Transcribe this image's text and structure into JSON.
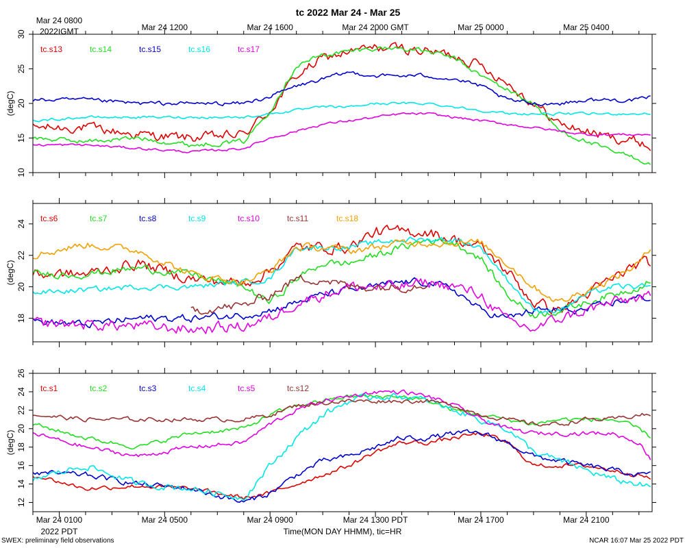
{
  "title": "tc 2022 Mar 24 - Mar 25",
  "footer_left": "SWEX: preliminary field observations",
  "footer_right": "NCAR 16:07 Mar 25 2022 PDT",
  "x_axis": {
    "label": "Time(MON DAY HHMM), tic=HR",
    "range_hours_pdt": [
      0,
      23.5
    ],
    "top_ticks_gmt": [
      "Mar 24 0800",
      "Mar 24 1200",
      "Mar 24 1600",
      "Mar 24 2000 GMT",
      "Mar 25 0000",
      "Mar 25 0400"
    ],
    "top_tick_hours_pdt": [
      1,
      5,
      9,
      13,
      17,
      21
    ],
    "top_first_sub": "2022 GMT",
    "bottom_ticks_pdt": [
      "Mar 24 0100",
      "Mar 24 0500",
      "Mar 24 0900",
      "Mar 24 1300 PDT",
      "Mar 24 1700",
      "Mar 24 2100"
    ],
    "bottom_tick_hours_pdt": [
      1,
      5,
      9,
      13,
      17,
      21
    ],
    "bottom_first_sub": "2022 PDT"
  },
  "colors": {
    "red": "#dd0000",
    "green": "#22dd22",
    "blue": "#0000cc",
    "cyan": "#00e5e5",
    "magenta": "#e000e0",
    "brown": "#993333",
    "orange": "#f0a000"
  },
  "chart_data": [
    {
      "type": "line",
      "panel": "top",
      "ylabel": "(degC)",
      "ylim": [
        10,
        30
      ],
      "yticks": [
        10,
        15,
        20,
        25,
        30
      ],
      "x_hours_pdt": [
        0,
        2,
        4,
        6,
        8,
        9,
        10,
        11,
        12,
        13,
        14,
        15,
        16,
        17,
        18,
        19,
        20,
        21,
        22,
        23,
        23.5
      ],
      "series": [
        {
          "name": "tc.s13",
          "color": "red",
          "noise": 1.2,
          "values": [
            16.5,
            16.5,
            15.5,
            15,
            15.5,
            19,
            24,
            26.5,
            27.5,
            28,
            28,
            27.5,
            27,
            25.5,
            23,
            20,
            17,
            16,
            15,
            14.5,
            13.5
          ]
        },
        {
          "name": "tc.s14",
          "color": "green",
          "noise": 0.6,
          "values": [
            15,
            14.5,
            15,
            14,
            14.5,
            19,
            25.5,
            27,
            27.5,
            28,
            28,
            27.5,
            26.5,
            24,
            22,
            20,
            16,
            14.5,
            13,
            12,
            11
          ]
        },
        {
          "name": "tc.s15",
          "color": "blue",
          "noise": 0.5,
          "values": [
            20.5,
            20.5,
            20,
            20,
            20,
            21,
            22.5,
            23.5,
            24.5,
            24,
            24,
            24,
            23.5,
            22.5,
            20.5,
            20,
            20,
            20.5,
            20.5,
            20.5,
            21
          ]
        },
        {
          "name": "tc.s16",
          "color": "cyan",
          "noise": 0.3,
          "values": [
            17.5,
            18,
            18,
            18,
            18,
            18.5,
            19,
            19.5,
            19.5,
            20,
            20,
            20,
            19.5,
            19,
            18.5,
            18.5,
            18.5,
            18.5,
            18.5,
            18.5,
            18.5
          ]
        },
        {
          "name": "tc.s17",
          "color": "magenta",
          "noise": 0.3,
          "values": [
            14,
            14,
            13.5,
            13,
            13.5,
            15,
            16,
            17,
            17.5,
            18,
            18.5,
            18.5,
            18,
            17.5,
            17,
            16.5,
            16,
            15.5,
            15.5,
            15.5,
            15.5
          ]
        }
      ]
    },
    {
      "type": "line",
      "panel": "middle",
      "ylabel": "(degC)",
      "ylim": [
        16.5,
        25.3
      ],
      "yticks": [
        18,
        20,
        22,
        24
      ],
      "x_hours_pdt": [
        0,
        2,
        4,
        6,
        8,
        9,
        10,
        11,
        12,
        13,
        14,
        15,
        16,
        17,
        18,
        19,
        20,
        21,
        22,
        23,
        23.5
      ],
      "series": [
        {
          "name": "tc.s6",
          "color": "red",
          "noise": 0.6,
          "values": [
            20.8,
            20.8,
            21.5,
            20.5,
            20.2,
            21,
            22.5,
            22.5,
            22.5,
            23.5,
            23.5,
            23.5,
            23,
            22.5,
            21,
            19,
            18.5,
            19.5,
            20.5,
            21.5,
            21.5
          ]
        },
        {
          "name": "tc.s7",
          "color": "green",
          "noise": 0.4,
          "values": [
            20.8,
            20.8,
            21.2,
            20.8,
            20,
            19,
            20.5,
            21.5,
            21.5,
            22,
            22.5,
            23,
            22.8,
            21.8,
            19.5,
            18.2,
            18.5,
            19,
            19.5,
            20,
            20.5
          ]
        },
        {
          "name": "tc.s8",
          "color": "blue",
          "noise": 0.4,
          "values": [
            17.8,
            17.6,
            18,
            18,
            18.2,
            18.5,
            19,
            19.5,
            19.8,
            20,
            20.3,
            20.3,
            19.8,
            18.5,
            18,
            18.5,
            18.5,
            18.5,
            19,
            19.3,
            19.3
          ]
        },
        {
          "name": "tc.s9",
          "color": "cyan",
          "noise": 0.3,
          "values": [
            19.6,
            19.8,
            20,
            20,
            20.3,
            20.5,
            22.5,
            22.5,
            22.5,
            22.8,
            23,
            23,
            23,
            22.5,
            20.5,
            18.5,
            18.5,
            19.5,
            20,
            20,
            20
          ]
        },
        {
          "name": "tc.s10",
          "color": "magenta",
          "noise": 0.6,
          "values": [
            17.7,
            17.6,
            17.5,
            17.3,
            17.5,
            18,
            19,
            19.5,
            20,
            20,
            20,
            20.3,
            20,
            19.5,
            17.8,
            17.3,
            18,
            18.5,
            19,
            19.3,
            19.3
          ]
        },
        {
          "name": "tc.s11",
          "color": "brown",
          "noise": 0.5,
          "values": [
            null,
            null,
            null,
            18.5,
            18.8,
            19.5,
            20.5,
            20.5,
            20,
            20,
            20,
            20.2,
            null,
            null,
            null,
            null,
            null,
            null,
            null,
            null,
            null
          ]
        },
        {
          "name": "tc.s18",
          "color": "orange",
          "noise": 0.4,
          "values": [
            22,
            22.7,
            22.3,
            20.8,
            20.3,
            21,
            22.5,
            22.5,
            22.3,
            22.5,
            22.8,
            22.8,
            22.8,
            22.8,
            21.5,
            20,
            19,
            19.8,
            20.5,
            21.5,
            22.5
          ]
        }
      ]
    },
    {
      "type": "line",
      "panel": "bottom",
      "ylabel": "(degC)",
      "ylim": [
        11,
        26
      ],
      "yticks": [
        12,
        14,
        16,
        18,
        20,
        22,
        24,
        26
      ],
      "x_hours_pdt": [
        0,
        2,
        4,
        6,
        8,
        9,
        10,
        11,
        12,
        13,
        14,
        15,
        16,
        17,
        18,
        19,
        20,
        21,
        22,
        23,
        23.5
      ],
      "series": [
        {
          "name": "tc.s1",
          "color": "red",
          "noise": 0.4,
          "values": [
            15,
            13.5,
            13.8,
            13.5,
            12.5,
            13,
            14,
            15,
            16,
            17.5,
            18.5,
            18.5,
            19,
            19.5,
            18.5,
            16,
            16,
            16,
            15.5,
            15,
            14.5
          ]
        },
        {
          "name": "tc.s2",
          "color": "green",
          "noise": 0.4,
          "values": [
            20.5,
            19,
            18,
            19.5,
            20,
            21.5,
            22.5,
            23,
            23.5,
            23.5,
            23.5,
            23,
            22,
            21.5,
            21,
            20.5,
            21,
            21,
            21,
            20,
            19
          ]
        },
        {
          "name": "tc.s3",
          "color": "blue",
          "noise": 0.5,
          "values": [
            15.2,
            15,
            14,
            13.5,
            12,
            13,
            15,
            16.5,
            17,
            18,
            19,
            19,
            19.5,
            19.5,
            18.5,
            17,
            16.5,
            16,
            15.5,
            15,
            15
          ]
        },
        {
          "name": "tc.s4",
          "color": "cyan",
          "noise": 0.6,
          "values": [
            14.5,
            16,
            14,
            13.5,
            12.5,
            16,
            19,
            21.5,
            23,
            23.5,
            23.5,
            23,
            22,
            21,
            20,
            17.5,
            16.5,
            15.5,
            14.5,
            14,
            13.5
          ]
        },
        {
          "name": "tc.s5",
          "color": "magenta",
          "noise": 0.4,
          "values": [
            19.5,
            18,
            17,
            18,
            18.5,
            20.5,
            22,
            23,
            23.5,
            24,
            24,
            23.5,
            22.5,
            21,
            20,
            19.5,
            19.5,
            19.5,
            19.5,
            18.5,
            16.5
          ]
        },
        {
          "name": "tc.s12",
          "color": "brown",
          "noise": 0.4,
          "values": [
            21.5,
            21,
            21,
            21,
            21,
            21.5,
            22.5,
            22.8,
            23,
            23,
            23,
            23,
            22.5,
            21.5,
            21,
            20.5,
            20.5,
            21,
            21,
            21.5,
            21.5
          ]
        }
      ]
    }
  ]
}
